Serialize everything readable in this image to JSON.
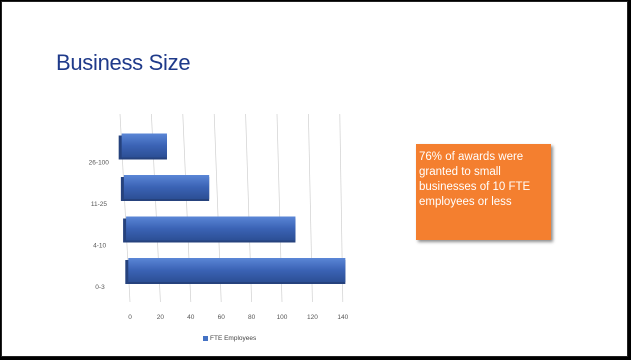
{
  "slide": {
    "title": "Business Size",
    "callout": "76% of awards were granted to small businesses of 10 FTE employees or less",
    "callout_color": "#F47F2F",
    "title_color": "#1F3A8A"
  },
  "chart_data": {
    "type": "bar",
    "orientation": "horizontal",
    "style": "3d",
    "categories": [
      "0-3",
      "4-10",
      "11-25",
      "26-100"
    ],
    "series": [
      {
        "name": "FTE Employees",
        "values": [
          142,
          110,
          55,
          29
        ],
        "color": "#4472C4"
      }
    ],
    "xticks": [
      "0",
      "20",
      "40",
      "60",
      "80",
      "100",
      "120",
      "140"
    ],
    "xlim": [
      0,
      140
    ],
    "grid": true,
    "legend": "bottom-left",
    "title": "",
    "xlabel": "",
    "ylabel": ""
  }
}
